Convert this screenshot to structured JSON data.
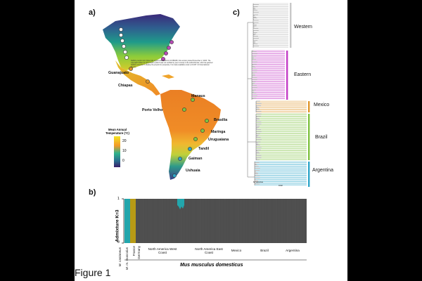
{
  "panels": {
    "a": "a)",
    "b": "b)",
    "c": "c)"
  },
  "map": {
    "cities": [
      "Guanajuato",
      "Chiapas",
      "Manaus",
      "Porto Velho",
      "Brasilia",
      "Maringa",
      "Uruguaiana",
      "Tandil",
      "Gaiman",
      "Ushuaia"
    ],
    "legend": {
      "title": "Mean Annual Temperature (°C)",
      "ticks": [
        "20",
        "10",
        "0"
      ]
    },
    "notice": "bioRxiv preprint doi: https://doi.org/10.1101/2023.11.01.565206; this version posted November 2, 2023. The copyright holder for this preprint (which was not certified by peer review) is the author/funder, who has granted bioRxiv a license to display the preprint in perpetuity. It is made available under a CC-BY 4.0 International license."
  },
  "tree": {
    "clades": [
      "Western",
      "Eastern",
      "Mexico",
      "Brazil",
      "Argentina"
    ],
    "outgroup": "M. spretus",
    "scale": "0.02",
    "colors": {
      "western": "#bdbdbd",
      "eastern": "#c43bc6",
      "mexico": "#e0962a",
      "brazil": "#7fc241",
      "argentina": "#2fa6c9"
    }
  },
  "admixture": {
    "ylabel": "Admixture K=3",
    "yticks": [
      "1",
      "0"
    ],
    "categories": [
      "M. castaneus",
      "M. m. musculus",
      "France",
      "Germany",
      "North America West Coast",
      "North America East Coast",
      "Mexico",
      "Brazil",
      "Argentina"
    ],
    "group_label": "Mus musculus domesticus",
    "colors": {
      "k1": "#22a6ac",
      "k2": "#b79a15",
      "k3": "#4d4d4d"
    }
  },
  "figure_label": "Figure 1"
}
